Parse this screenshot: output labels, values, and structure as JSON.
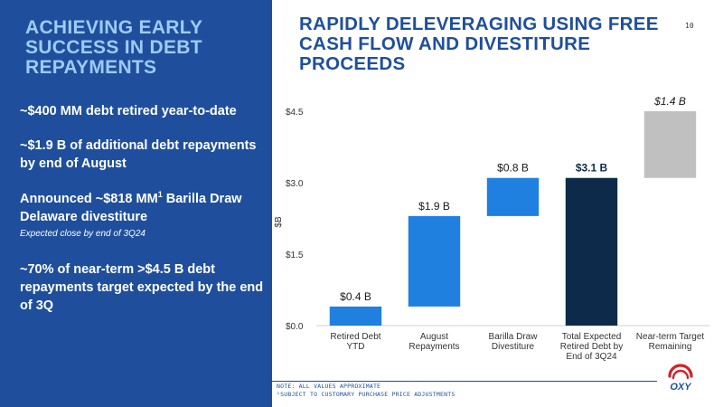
{
  "left": {
    "title": "ACHIEVING EARLY SUCCESS IN DEBT REPAYMENTS",
    "bullets": [
      {
        "text": "~$400 MM debt retired year-to-date"
      },
      {
        "text": "~$1.9 B of additional debt repayments by end of August"
      },
      {
        "text_before": "Announced ~$818 MM",
        "sup": "1",
        "text_after": " Barilla Draw Delaware divestiture",
        "sub": "Expected close by end of 3Q24"
      },
      {
        "text": "~70% of near-term >$4.5 B debt repayments target expected by the end of 3Q"
      }
    ]
  },
  "right": {
    "title": "RAPIDLY DELEVERAGING USING FREE CASH FLOW AND DIVESTITURE PROCEEDS",
    "page_number": "10"
  },
  "chart_data": {
    "type": "bar",
    "subtype": "waterfall",
    "ylabel": "$B",
    "ylim": [
      0,
      4.5
    ],
    "yticks": [
      {
        "value": 0,
        "label": "$0.0"
      },
      {
        "value": 1.5,
        "label": "$1.5"
      },
      {
        "value": 3.0,
        "label": "$3.0"
      },
      {
        "value": 4.5,
        "label": "$4.5"
      }
    ],
    "grid": false,
    "bars": [
      {
        "category": "Retired Debt YTD",
        "start": 0,
        "end": 0.4,
        "label": "$0.4 B",
        "color": "#1f80e0",
        "label_style": "normal"
      },
      {
        "category": "August Repayments",
        "start": 0.4,
        "end": 2.3,
        "label": "$1.9 B",
        "color": "#1f80e0",
        "label_style": "normal"
      },
      {
        "category": "Barilla Draw Divestiture",
        "start": 2.3,
        "end": 3.1,
        "label": "$0.8 B",
        "color": "#1f80e0",
        "label_style": "normal"
      },
      {
        "category": "Total Expected Retired Debt by End of 3Q24",
        "start": 0,
        "end": 3.1,
        "label": "$3.1 B",
        "color": "#0d2a4a",
        "label_style": "bold"
      },
      {
        "category": "Near-term Target Remaining",
        "start": 3.1,
        "end": 4.5,
        "label": "$1.4 B",
        "color": "#c0c0c0",
        "label_style": "italic"
      }
    ],
    "category_lines": [
      [
        "Retired Debt",
        "YTD"
      ],
      [
        "August",
        "Repayments"
      ],
      [
        "Barilla Draw",
        "Divestiture"
      ],
      [
        "Total Expected",
        "Retired Debt by",
        "End of 3Q24"
      ],
      [
        "Near-term Target",
        "Remaining"
      ]
    ]
  },
  "footer": {
    "note1": "NOTE: ALL VALUES APPROXIMATE",
    "note2": "¹SUBJECT TO CUSTOMARY PURCHASE PRICE ADJUSTMENTS",
    "logo_text": "OXY",
    "logo_icon": "oxy-logo-icon",
    "colors": {
      "primary_blue": "#1f4f9c",
      "accent_blue": "#9ecbf5",
      "logo_red": "#d1232a"
    }
  }
}
